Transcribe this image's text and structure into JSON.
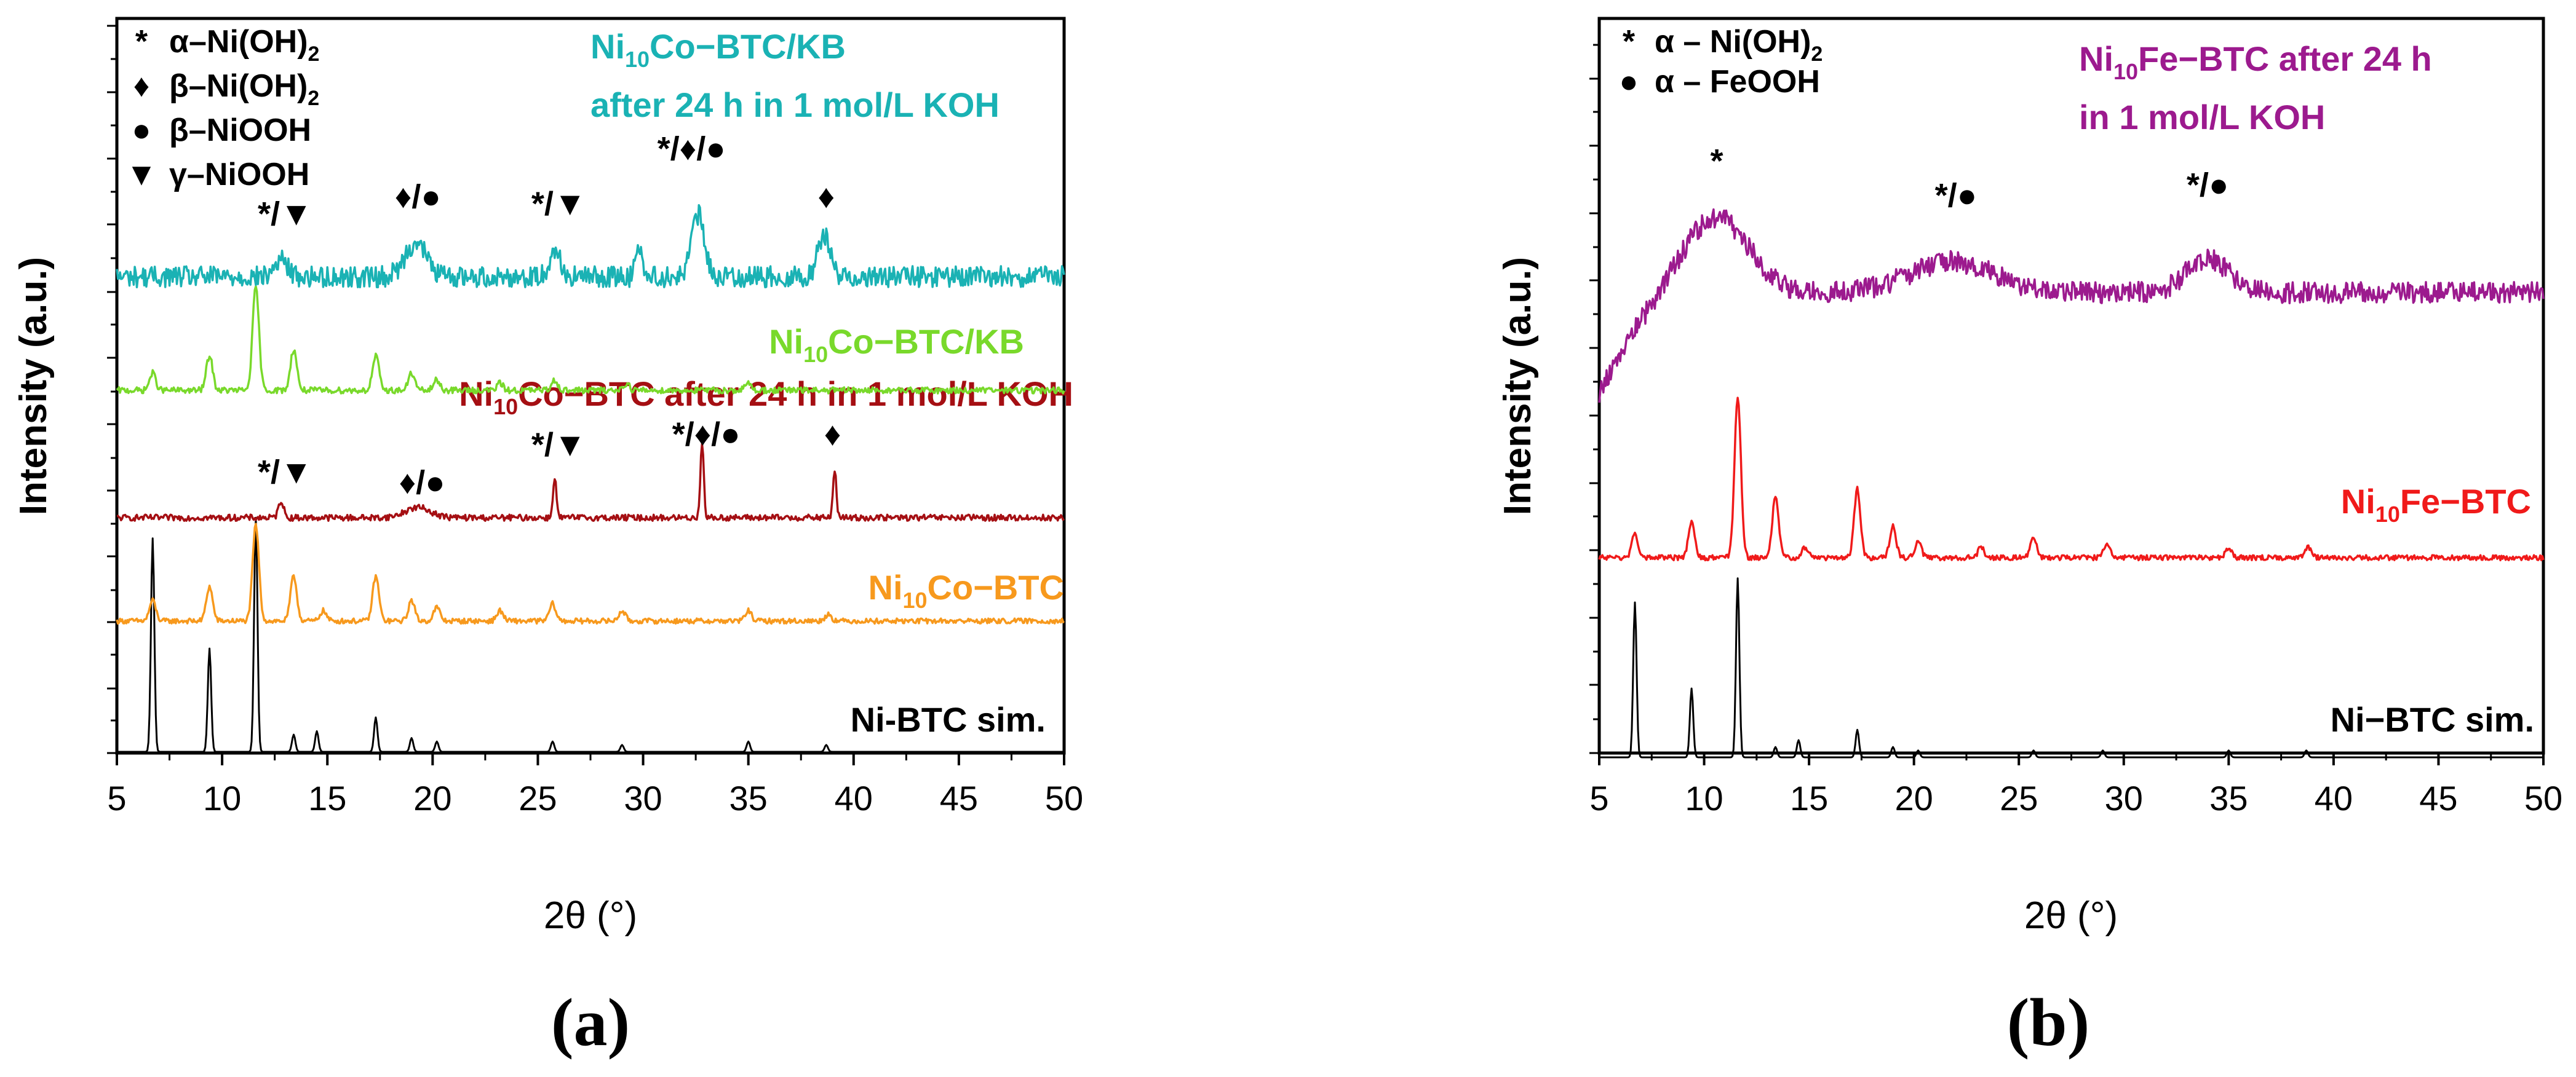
{
  "figure": {
    "panel_a_label": "(a)",
    "panel_b_label": "(b)"
  },
  "colors": {
    "black": "#000000",
    "cyan": "#1ab2b4",
    "green": "#79d92b",
    "darkred": "#a50f13",
    "orange": "#f7991d",
    "purple": "#9c1a8e",
    "red": "#f01a1a"
  },
  "chart_data": [
    {
      "id": "a",
      "type": "line",
      "title": "",
      "xlabel": "2θ (°)",
      "ylabel": "Intensity (a.u.)",
      "xlim": [
        5,
        50
      ],
      "xticks": [
        5,
        10,
        15,
        20,
        25,
        30,
        35,
        40,
        45,
        50
      ],
      "legend": {
        "position": "top-left",
        "entries": [
          {
            "symbol": "*",
            "label": "α–Ni(OH)",
            "sub": "2"
          },
          {
            "symbol": "♦",
            "label": "β–Ni(OH)",
            "sub": "2"
          },
          {
            "symbol": "●",
            "label": "β–NiOOH",
            "sub": ""
          },
          {
            "symbol": "▼",
            "label": "γ–NiOOH",
            "sub": ""
          }
        ]
      },
      "series": [
        {
          "name": "Ni-BTC sim.",
          "label_parts": [
            "Ni-BTC sim."
          ],
          "color": "#000000",
          "baseline": 0.0,
          "noise": 0.0,
          "peaks": [
            [
              6.7,
              0.62,
              0.08
            ],
            [
              9.4,
              0.3,
              0.08
            ],
            [
              11.6,
              0.68,
              0.08
            ],
            [
              13.4,
              0.05,
              0.08
            ],
            [
              14.5,
              0.06,
              0.08
            ],
            [
              17.3,
              0.1,
              0.08
            ],
            [
              19.0,
              0.04,
              0.08
            ],
            [
              20.2,
              0.03,
              0.08
            ],
            [
              25.7,
              0.03,
              0.08
            ],
            [
              29.0,
              0.02,
              0.08
            ],
            [
              35.0,
              0.03,
              0.08
            ],
            [
              38.7,
              0.02,
              0.08
            ]
          ]
        },
        {
          "name": "Ni10Co-BTC",
          "label_parts": [
            "Ni",
            "10",
            "Co−BTC"
          ],
          "color": "#f7991d",
          "baseline": 0.38,
          "noise": 0.005,
          "peaks": [
            [
              6.7,
              0.06,
              0.15
            ],
            [
              9.4,
              0.1,
              0.15
            ],
            [
              11.6,
              0.28,
              0.15
            ],
            [
              13.4,
              0.13,
              0.15
            ],
            [
              14.8,
              0.03,
              0.15
            ],
            [
              17.3,
              0.13,
              0.15
            ],
            [
              19.0,
              0.06,
              0.15
            ],
            [
              20.2,
              0.04,
              0.15
            ],
            [
              23.2,
              0.03,
              0.15
            ],
            [
              25.7,
              0.05,
              0.15
            ],
            [
              29.0,
              0.03,
              0.15
            ],
            [
              35.0,
              0.03,
              0.15
            ],
            [
              38.8,
              0.02,
              0.15
            ]
          ]
        },
        {
          "name": "Ni10Co-BTC after 24 h in 1 mol/L KOH",
          "label_parts": [
            "Ni",
            "10",
            "Co−BTC after 24 h in 1 mol/L KOH"
          ],
          "color": "#a50f13",
          "baseline": 0.68,
          "noise": 0.006,
          "peaks": [
            [
              12.8,
              0.05,
              0.12
            ],
            [
              19.3,
              0.03,
              0.6
            ],
            [
              25.8,
              0.12,
              0.08
            ],
            [
              32.8,
              0.22,
              0.08
            ],
            [
              39.1,
              0.14,
              0.08
            ]
          ]
        },
        {
          "name": "Ni10Co-BTC/KB",
          "label_parts": [
            "Ni",
            "10",
            "Co−BTC/KB"
          ],
          "color": "#79d92b",
          "baseline": 1.05,
          "noise": 0.006,
          "peaks": [
            [
              6.7,
              0.05,
              0.15
            ],
            [
              9.4,
              0.1,
              0.15
            ],
            [
              11.6,
              0.3,
              0.15
            ],
            [
              13.4,
              0.12,
              0.15
            ],
            [
              17.3,
              0.1,
              0.15
            ],
            [
              19.0,
              0.05,
              0.15
            ],
            [
              20.2,
              0.03,
              0.15
            ],
            [
              23.2,
              0.02,
              0.15
            ],
            [
              25.8,
              0.03,
              0.15
            ],
            [
              29.2,
              0.02,
              0.15
            ],
            [
              35.0,
              0.02,
              0.15
            ]
          ]
        },
        {
          "name": "Ni10Co-BTC/KB after 24 h in 1 mol/L KOH",
          "label_parts": [
            "Ni",
            "10",
            "Co−BTC/KB"
          ],
          "label_line2": "after 24 h in 1 mol/L KOH",
          "color": "#1ab2b4",
          "baseline": 1.38,
          "noise": 0.014,
          "peaks": [
            [
              12.8,
              0.05,
              0.3
            ],
            [
              19.2,
              0.1,
              0.5
            ],
            [
              25.8,
              0.08,
              0.25
            ],
            [
              29.8,
              0.1,
              0.15
            ],
            [
              32.6,
              0.18,
              0.3
            ],
            [
              38.6,
              0.12,
              0.3
            ]
          ]
        }
      ],
      "annotations": [
        {
          "text": "*/▼",
          "x": 13.0,
          "y": 1.53
        },
        {
          "text": "♦/●",
          "x": 19.3,
          "y": 1.58
        },
        {
          "text": "*/▼",
          "x": 26.0,
          "y": 1.56
        },
        {
          "text": "*/♦/●",
          "x": 32.3,
          "y": 1.72
        },
        {
          "text": "♦",
          "x": 38.7,
          "y": 1.58
        },
        {
          "text": "*/▼",
          "x": 13.0,
          "y": 0.78
        },
        {
          "text": "♦/●",
          "x": 19.5,
          "y": 0.75
        },
        {
          "text": "*/▼",
          "x": 26.0,
          "y": 0.86
        },
        {
          "text": "*/♦/●",
          "x": 33.0,
          "y": 0.89
        },
        {
          "text": "♦",
          "x": 39.0,
          "y": 0.89
        }
      ]
    },
    {
      "id": "b",
      "type": "line",
      "title": "",
      "xlabel": "2θ (°)",
      "ylabel": "Intensity (a.u.)",
      "xlim": [
        5,
        50
      ],
      "xticks": [
        5,
        10,
        15,
        20,
        25,
        30,
        35,
        40,
        45,
        50
      ],
      "legend": {
        "position": "top-left",
        "entries": [
          {
            "symbol": "*",
            "label": "α – Ni(OH)",
            "sub": "2"
          },
          {
            "symbol": "●",
            "label": "α – FeOOH",
            "sub": ""
          }
        ]
      },
      "series": [
        {
          "name": "Ni-BTC sim.",
          "label_parts": [
            "Ni−BTC sim."
          ],
          "color": "#000000",
          "baseline": 0.0,
          "noise": 0.0,
          "peaks": [
            [
              6.7,
              0.45,
              0.08
            ],
            [
              9.4,
              0.2,
              0.08
            ],
            [
              11.6,
              0.52,
              0.08
            ],
            [
              13.4,
              0.03,
              0.08
            ],
            [
              14.5,
              0.05,
              0.08
            ],
            [
              17.3,
              0.08,
              0.08
            ],
            [
              19.0,
              0.03,
              0.08
            ],
            [
              20.2,
              0.02,
              0.08
            ],
            [
              25.7,
              0.02,
              0.08
            ],
            [
              29.0,
              0.02,
              0.08
            ],
            [
              35.0,
              0.02,
              0.08
            ],
            [
              38.7,
              0.02,
              0.08
            ]
          ]
        },
        {
          "name": "Ni10Fe-BTC",
          "label_parts": [
            "Ni",
            "10",
            "Fe−BTC"
          ],
          "color": "#f01a1a",
          "baseline": 0.58,
          "noise": 0.005,
          "peaks": [
            [
              6.7,
              0.07,
              0.15
            ],
            [
              9.4,
              0.1,
              0.15
            ],
            [
              11.6,
              0.47,
              0.15
            ],
            [
              13.4,
              0.18,
              0.15
            ],
            [
              14.8,
              0.03,
              0.15
            ],
            [
              17.3,
              0.2,
              0.15
            ],
            [
              19.0,
              0.09,
              0.15
            ],
            [
              20.2,
              0.05,
              0.15
            ],
            [
              23.2,
              0.03,
              0.15
            ],
            [
              25.7,
              0.06,
              0.15
            ],
            [
              29.2,
              0.04,
              0.15
            ],
            [
              35.0,
              0.03,
              0.15
            ],
            [
              38.8,
              0.03,
              0.15
            ]
          ]
        },
        {
          "name": "Ni10Fe-BTC after 24 h in 1 mol/L KOH",
          "label_parts": [
            "Ni",
            "10",
            "Fe−BTC after 24 h"
          ],
          "label_line2": "in 1 mol/L KOH",
          "color": "#9c1a8e",
          "baseline": 1.35,
          "noise": 0.014,
          "ramp_start": 1.05,
          "peaks": [
            [
              10.6,
              0.22,
              1.5
            ],
            [
              21.8,
              0.09,
              2.0
            ],
            [
              34.0,
              0.1,
              1.0
            ]
          ]
        }
      ],
      "annotations": [
        {
          "text": "*",
          "x": 10.6,
          "y": 1.7
        },
        {
          "text": "*/●",
          "x": 22.0,
          "y": 1.6
        },
        {
          "text": "*/●",
          "x": 34.0,
          "y": 1.63
        }
      ]
    }
  ]
}
